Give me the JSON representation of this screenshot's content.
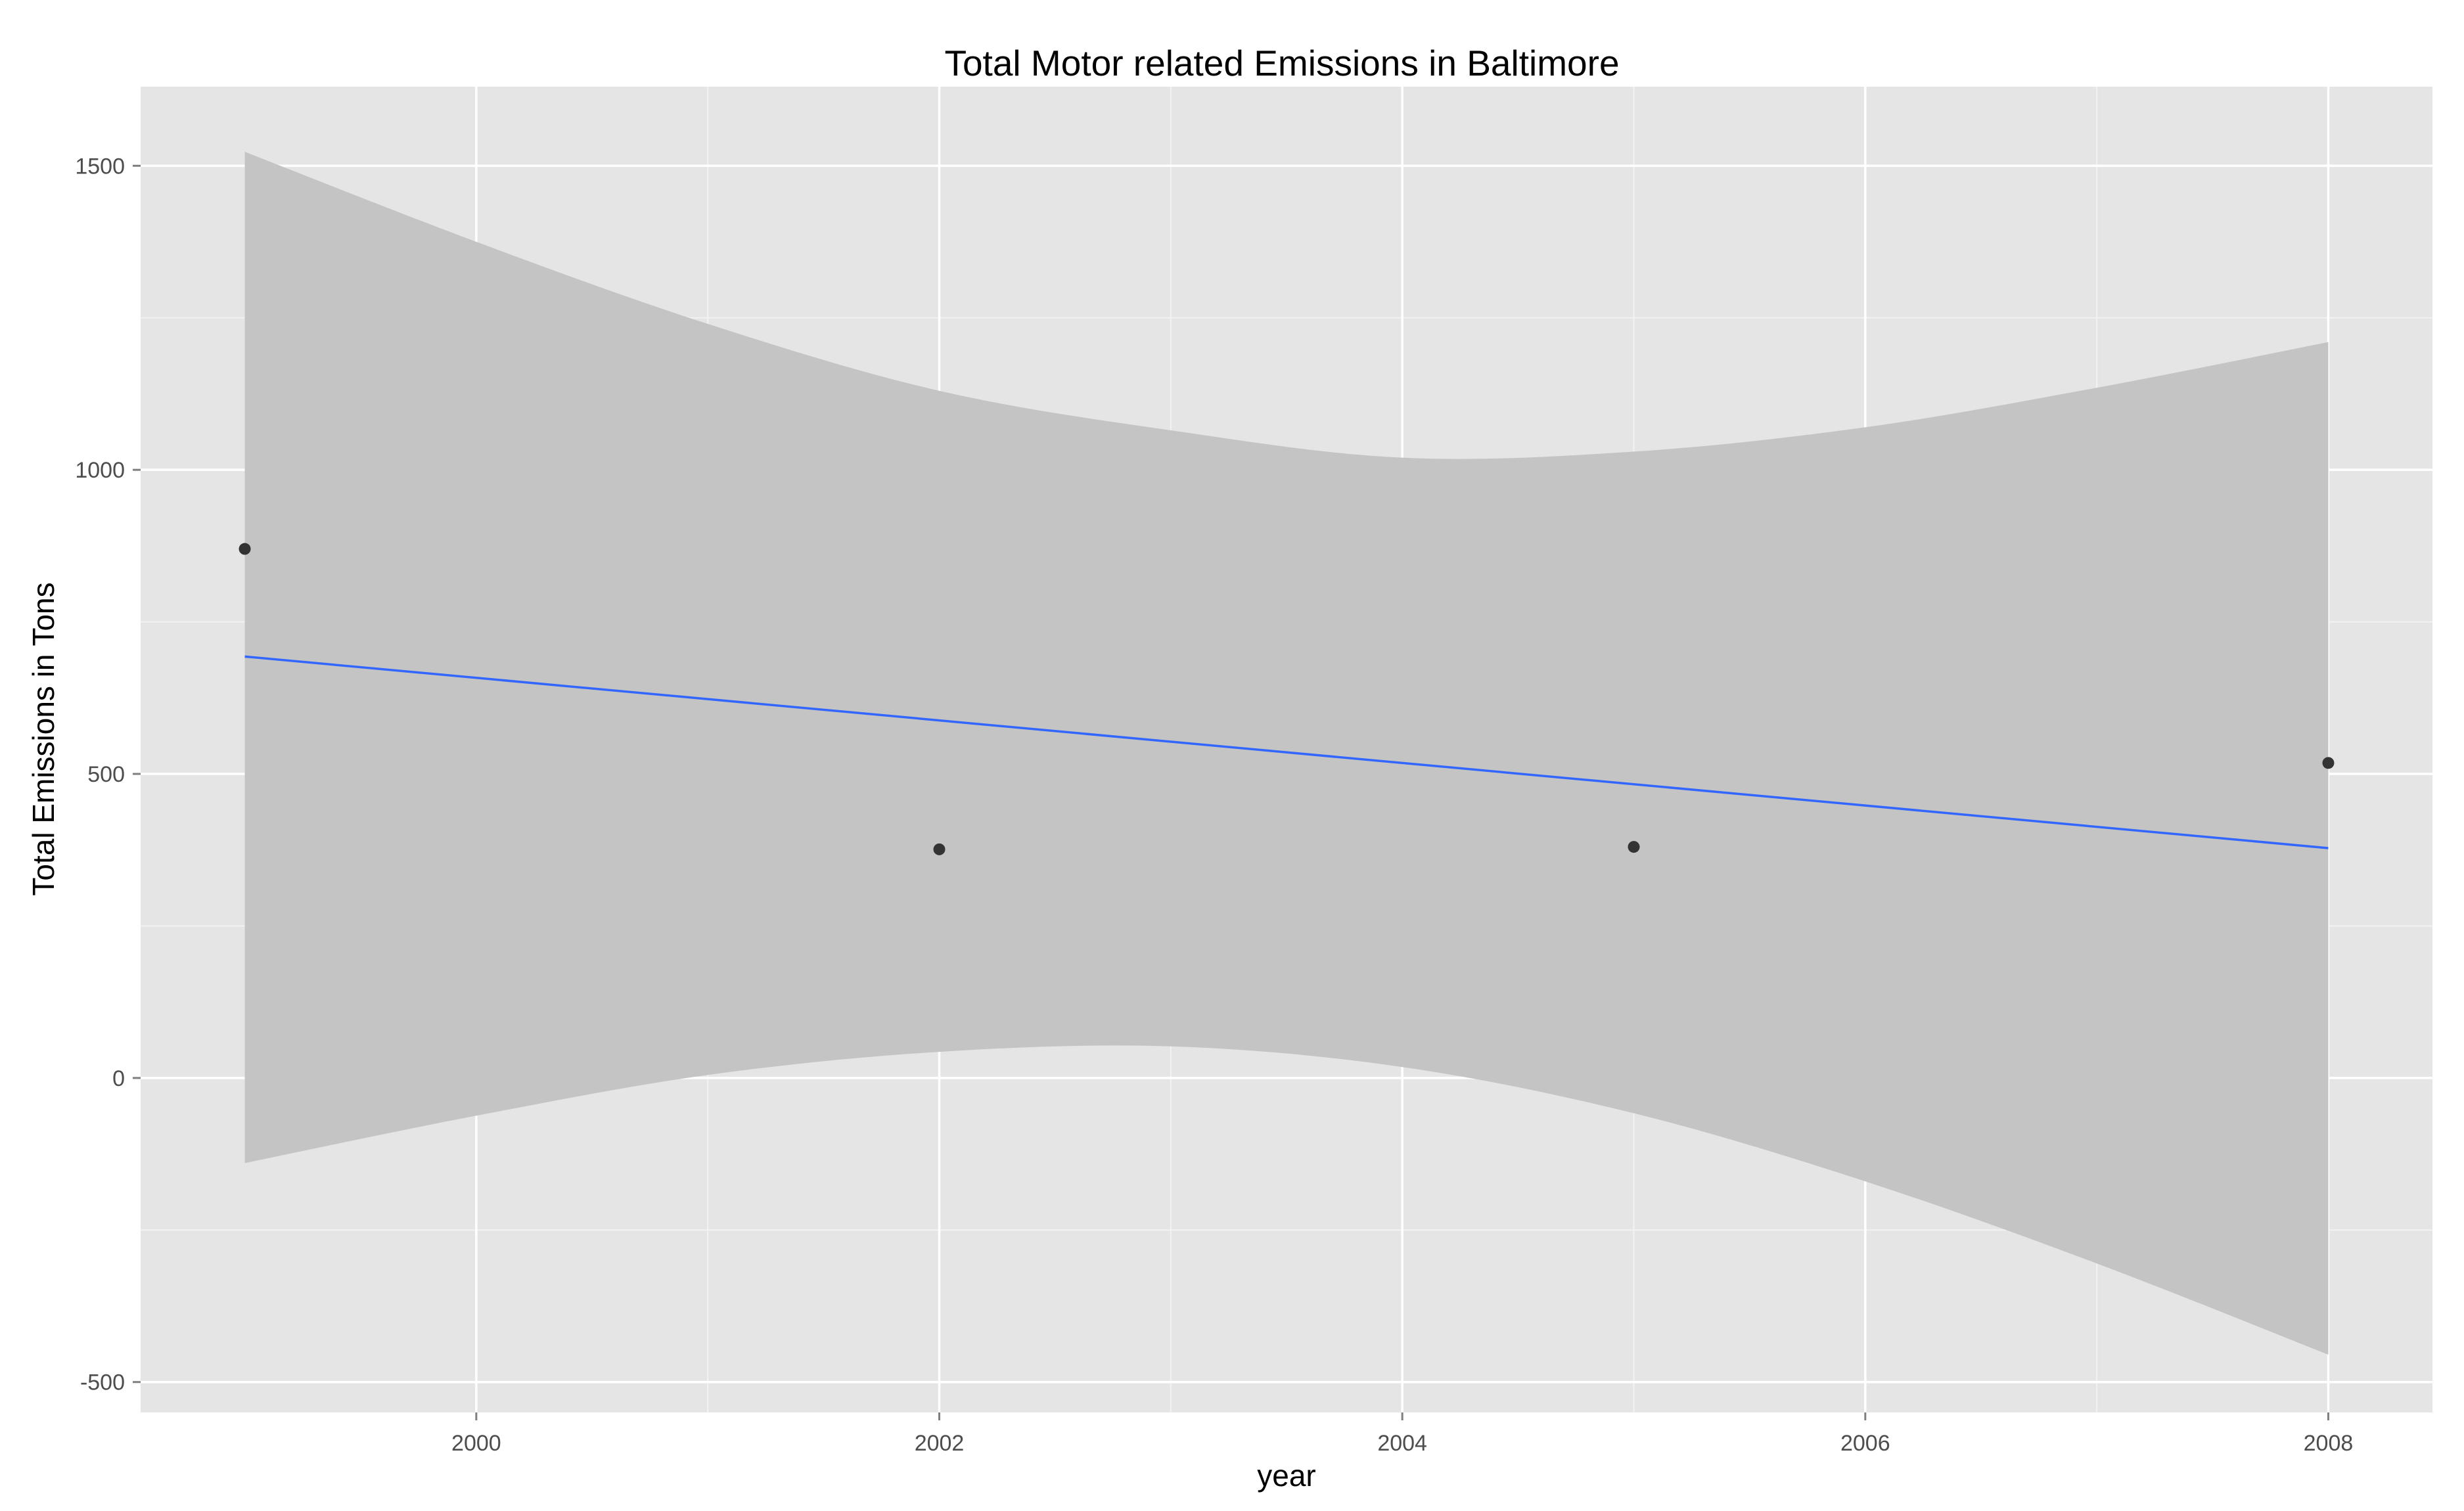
{
  "chart_data": {
    "type": "scatter",
    "title": "Total Motor related Emissions in Baltimore",
    "xlabel": "year",
    "ylabel": "Total Emissions in Tons",
    "xlim": [
      1998.55,
      2008.45
    ],
    "ylim": [
      -550,
      1630
    ],
    "x_ticks": [
      2000,
      2002,
      2004,
      2006,
      2008
    ],
    "x_tick_labels": [
      "2000",
      "2002",
      "2004",
      "2006",
      "2008"
    ],
    "y_ticks": [
      -500,
      0,
      500,
      1000,
      1500
    ],
    "y_tick_labels": [
      "-500",
      "0",
      "500",
      "1000",
      "1500"
    ],
    "grid": true,
    "points": {
      "x": [
        1999,
        2002,
        2005,
        2008
      ],
      "y": [
        870,
        376,
        380,
        518
      ]
    },
    "fit_line": {
      "method": "lm",
      "x": [
        1999,
        2008
      ],
      "y": [
        693,
        378
      ]
    },
    "confidence_band": {
      "x": [
        1999,
        2000,
        2001,
        2002,
        2003,
        2004,
        2005,
        2006,
        2007,
        2008
      ],
      "upper": [
        1523,
        1375,
        1240,
        1130,
        1065,
        1020,
        1030,
        1070,
        1135,
        1210
      ],
      "lower": [
        -140,
        -62,
        5,
        43,
        52,
        18,
        -58,
        -170,
        -305,
        -455
      ]
    },
    "colors": {
      "panel": "#e5e5e5",
      "grid_major": "#ffffff",
      "grid_minor": "#f2f2f2",
      "band": "#c4c4c4",
      "line": "#3366ff",
      "point": "#333333",
      "tick_text": "#4d4d4d"
    }
  }
}
